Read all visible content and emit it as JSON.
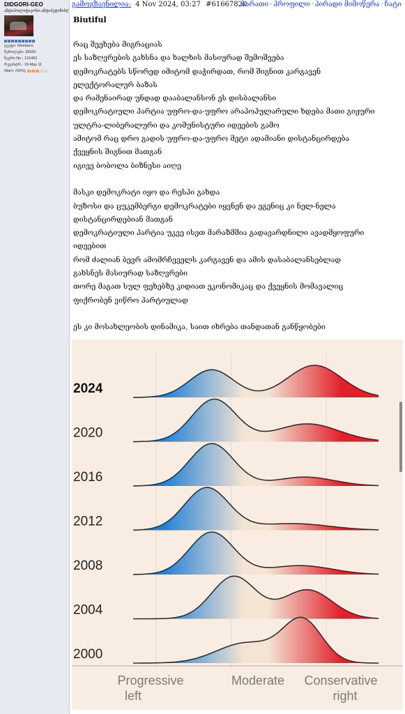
{
  "profile": {
    "username": "DIDGORI-GEO",
    "usertitle": "ანტიპოლიტიკოსი.ანტიპუტინისტი",
    "rank_dots": 9,
    "group": "ჯგუფი: Members",
    "posts": "წერილები: 35550",
    "member_no": "წევრი No.: 131463",
    "registered": "რეგისტრ.: 19-May 11",
    "warn_label": "Warn: (60%)",
    "warn_level": 0.6
  },
  "header": {
    "author": "გამოგზავნილია:",
    "date": "4 Nov 2024, 03:27",
    "post_number": "#61667820",
    "links": [
      "ბარათი",
      "პროფილი",
      "პირადი მიმოწერა",
      "ჩატი"
    ],
    "separator": "·"
  },
  "post": {
    "title": "Biutiful",
    "lines": [
      "რაც შეეხება მიგრაციას",
      "ეს საზღვრების გახსნა და ხალხის მასიურად შემოშვება",
      "დემოკრატებს სწორედ იმიტომ დაჭირდათ, რომ შიგნით კარგავენ",
      "ელექტორალურ ბაზას",
      "და რამენაირად უნდად დააბალანსონ ეს დისბალანსი",
      "დემოკრატიული პარტია უფრო-და-უფრო არაპოპულარული ხდება მათი გიჟური",
      "ულტრა-ლიბერალური და კომუნისტური იდეების გამო",
      "ამიტომ რაც დრო გადის უფრო-და-უფრო მეტი ადამიანი დისტანცირდება",
      "ქვეყნის შიგნით მათგან",
      "იგივე ბობოლა ბიზნესი აიღე",
      "",
      "მასკი დემოკრატი იყო და რესპი გახდა",
      "ბუზოსი და ცუკემბერგი დემოკრატები იყვნენ და ეგენიც კი ნელ-ნელა",
      "დისტანცირდებიან მათგან",
      "დემოკრატიული პარტია უკვე ისეთ მარაზმშია გადავარდნილი ავადმყოფური",
      "იდეებით",
      "რომ ძალიან ბევრ ამომრჩეველს კარგავენ და ამის დასაბალანსებლად",
      "გახსნეს მასიურად საზღვრები",
      "თორე მაგათ სულ ფეხებზე კიდიათ ეკონომიკაც და ქვეყნის მომავალიც",
      "ფიქრობენ ვიწრო პარტიულად",
      "",
      "ეს კი მოსახლეობის დინამიკა, საით იხრება თანდათან განწყობები"
    ]
  },
  "colors": {
    "link": "#1a35b8",
    "sidebar_bg": "#e8eaf2",
    "chart_bg": "#f9ede3",
    "progressive": "#1f7fd6",
    "moderate": "#f3e4d4",
    "conservative": "#e0202a"
  },
  "chart_data": {
    "type": "area",
    "x_ticks": [
      "Progressive left",
      "Moderate",
      "Conservative right"
    ],
    "x_range": [
      0,
      1
    ],
    "series": [
      {
        "name": "2024",
        "bold": true,
        "peaks": [
          {
            "pos": 0.32,
            "height": 0.62,
            "width": 0.09
          },
          {
            "pos": 0.74,
            "height": 0.72,
            "width": 0.11
          }
        ]
      },
      {
        "name": "2020",
        "bold": false,
        "peaks": [
          {
            "pos": 0.33,
            "height": 0.95,
            "width": 0.09
          },
          {
            "pos": 0.71,
            "height": 0.4,
            "width": 0.13
          }
        ]
      },
      {
        "name": "2016",
        "bold": false,
        "peaks": [
          {
            "pos": 0.32,
            "height": 0.95,
            "width": 0.09
          },
          {
            "pos": 0.7,
            "height": 0.2,
            "width": 0.12
          }
        ]
      },
      {
        "name": "2012",
        "bold": false,
        "peaks": [
          {
            "pos": 0.3,
            "height": 0.95,
            "width": 0.09
          },
          {
            "pos": 0.65,
            "height": 0.15,
            "width": 0.15
          }
        ]
      },
      {
        "name": "2008",
        "bold": false,
        "peaks": [
          {
            "pos": 0.32,
            "height": 0.95,
            "width": 0.09
          },
          {
            "pos": 0.68,
            "height": 0.2,
            "width": 0.13
          }
        ]
      },
      {
        "name": "2004",
        "bold": false,
        "peaks": [
          {
            "pos": 0.41,
            "height": 0.95,
            "width": 0.09
          },
          {
            "pos": 0.71,
            "height": 0.65,
            "width": 0.1
          }
        ]
      },
      {
        "name": "2000",
        "bold": false,
        "peaks": [
          {
            "pos": 0.46,
            "height": 0.45,
            "width": 0.12
          },
          {
            "pos": 0.69,
            "height": 0.95,
            "width": 0.08
          }
        ]
      }
    ]
  }
}
